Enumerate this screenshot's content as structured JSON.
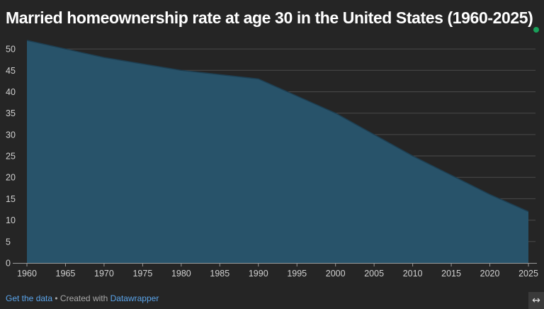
{
  "title": "Married homeownership rate at age 30 in the United States (1960-2025)",
  "colors": {
    "background": "#252525",
    "area_fill": "#28536a",
    "area_line": "#1e3f52",
    "gridline": "#4a4a4a",
    "baseline": "#9a9a9a",
    "tick_text": "#d0d0d0",
    "link": "#5aa4ea",
    "live_dot": "#19a05a"
  },
  "footer": {
    "get_data_label": "Get the data",
    "separator": " • Created with ",
    "datawrapper_label": "Datawrapper"
  },
  "expand_icon": "↔",
  "chart_data": {
    "type": "area",
    "title": "Married homeownership rate at age 30 in the United States (1960-2025)",
    "xlabel": "",
    "ylabel": "",
    "x": [
      1960,
      1965,
      1970,
      1975,
      1980,
      1985,
      1990,
      1995,
      2000,
      2005,
      2010,
      2015,
      2020,
      2025
    ],
    "series": [
      {
        "values": [
          52,
          50,
          48,
          46.5,
          45,
          44,
          43,
          39,
          35,
          30,
          25,
          20.5,
          16,
          12
        ]
      }
    ],
    "xlim": [
      1960,
      2025
    ],
    "ylim": [
      0,
      52
    ],
    "x_ticks": [
      1960,
      1965,
      1970,
      1975,
      1980,
      1985,
      1990,
      1995,
      2000,
      2005,
      2010,
      2015,
      2020,
      2025
    ],
    "y_ticks": [
      0,
      5,
      10,
      15,
      20,
      25,
      30,
      35,
      40,
      45,
      50
    ],
    "grid": true,
    "legend": "none"
  }
}
